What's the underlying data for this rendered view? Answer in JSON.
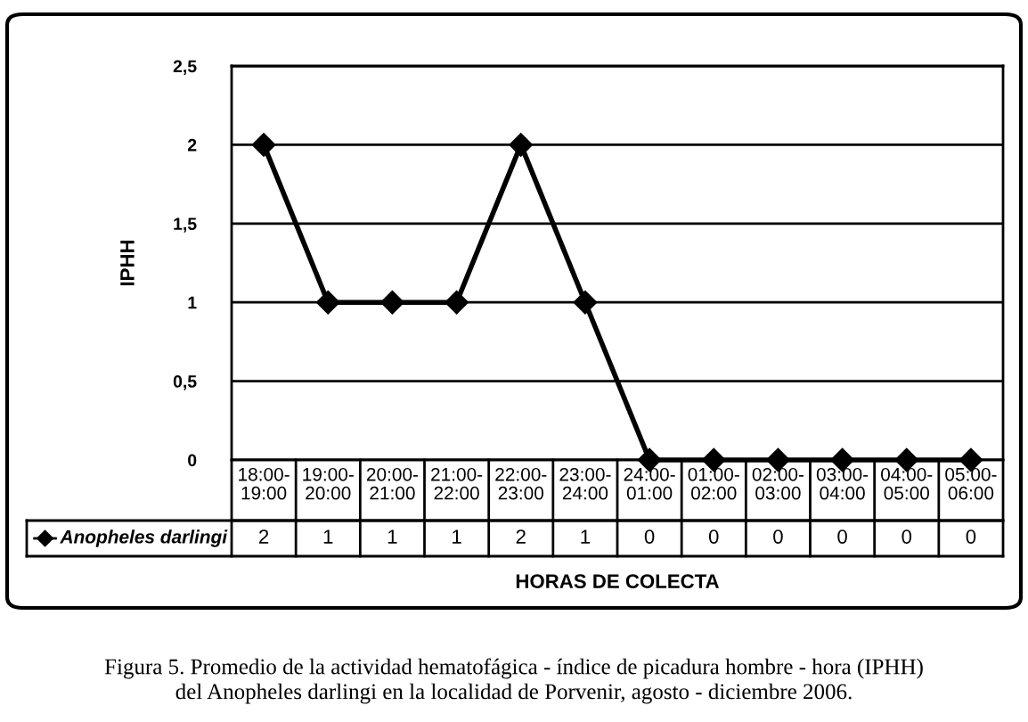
{
  "chart_data": {
    "type": "line",
    "xlabel": "HORAS DE COLECTA",
    "ylabel": "IPHH",
    "categories": [
      "18:00-\n19:00",
      "19:00-\n20:00",
      "20:00-\n21:00",
      "21:00-\n22:00",
      "22:00-\n23:00",
      "23:00-\n24:00",
      "24:00-\n01:00",
      "01:00-\n02:00",
      "02:00-\n03:00",
      "03:00-\n04:00",
      "04:00-\n05:00",
      "05:00-\n06:00"
    ],
    "series": [
      {
        "name": "Anopheles darlingi",
        "color": "#000000",
        "values": [
          2,
          1,
          1,
          1,
          2,
          1,
          0,
          0,
          0,
          0,
          0,
          0
        ]
      }
    ],
    "ylim": [
      0,
      2.5
    ],
    "yticks": [
      0,
      {
        "value": 0.5,
        "label": "0,5"
      },
      1,
      {
        "value": 1.5,
        "label": "1,5"
      },
      2,
      {
        "value": 2.5,
        "label": "2,5"
      }
    ],
    "grid": "y",
    "legend": "bottom left",
    "marker": "diamond",
    "line_style": "solid",
    "data_labels": true,
    "annotations": [
      "Figura 5. Promedio de la actividad hematofágica - índice de picadura hombre - hora (IPHH)\ndel Anopheles darlingi en la localidad de Porvenir, agosto - diciembre 2006."
    ]
  }
}
